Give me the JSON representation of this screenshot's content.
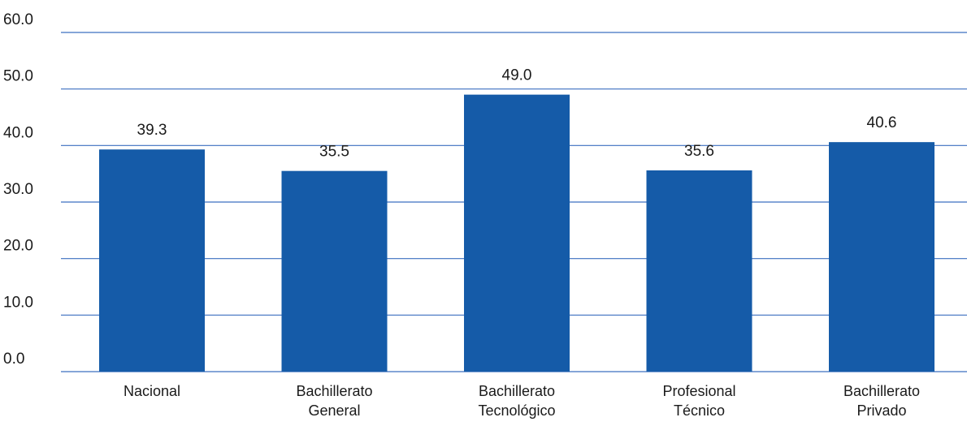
{
  "chart_data": {
    "type": "bar",
    "categories": [
      [
        "Nacional"
      ],
      [
        "Bachillerato",
        "General"
      ],
      [
        "Bachillerato",
        "Tecnológico"
      ],
      [
        "Profesional",
        "Técnico"
      ],
      [
        "Bachillerato",
        "Privado"
      ]
    ],
    "values": [
      39.3,
      35.5,
      49.0,
      35.6,
      40.6
    ],
    "value_labels": [
      "39.3",
      "35.5",
      "49.0",
      "35.6",
      "40.6"
    ],
    "ylim": [
      0,
      60
    ],
    "yticks": [
      0,
      10,
      20,
      30,
      40,
      50,
      60
    ],
    "ytick_labels": [
      "0.0",
      "10.0",
      "20.0",
      "30.0",
      "40.0",
      "50.0",
      "60.0"
    ],
    "grid": true,
    "bar_color": "#155ba8",
    "grid_color": "#3c6fc0"
  }
}
